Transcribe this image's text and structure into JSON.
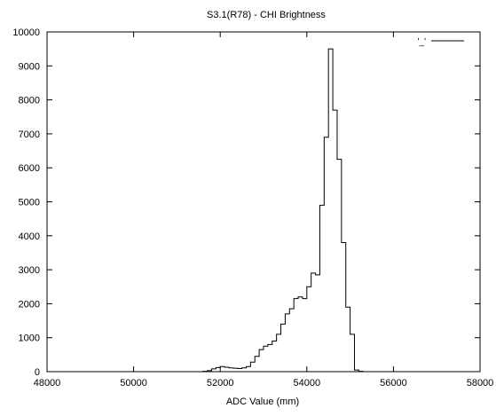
{
  "chart_data": {
    "type": "line",
    "title": "S3.1(R78) - CHI Brightness",
    "xlabel": "ADC Value (mm)",
    "ylabel": "",
    "xlim": [
      48000,
      58000
    ],
    "ylim": [
      0,
      10000
    ],
    "xticks": [
      48000,
      50000,
      52000,
      54000,
      56000,
      58000
    ],
    "yticks": [
      0,
      1000,
      2000,
      3000,
      4000,
      5000,
      6000,
      7000,
      8000,
      9000,
      10000
    ],
    "grid": false,
    "legend_position": "top-right",
    "legend": [
      "'_'"
    ],
    "series": [
      {
        "name": "'_'",
        "style": "steps",
        "x": [
          48000,
          51600,
          51700,
          51800,
          51900,
          52000,
          52100,
          52200,
          52300,
          52400,
          52500,
          52600,
          52700,
          52800,
          52900,
          53000,
          53100,
          53200,
          53300,
          53400,
          53500,
          53600,
          53700,
          53800,
          53900,
          54000,
          54100,
          54200,
          54300,
          54400,
          54500,
          54600,
          54700,
          54800,
          54900,
          55000,
          55100,
          55200,
          55300,
          58000
        ],
        "values": [
          0,
          10,
          30,
          80,
          120,
          150,
          130,
          110,
          100,
          90,
          110,
          150,
          280,
          450,
          650,
          750,
          800,
          900,
          1100,
          1400,
          1700,
          1850,
          2150,
          2200,
          2150,
          2500,
          2900,
          2850,
          4900,
          6900,
          9500,
          7700,
          6250,
          3800,
          1900,
          1100,
          50,
          10,
          0,
          0
        ]
      }
    ],
    "colors": {
      "line": "#000000",
      "axis": "#000000",
      "background": "#ffffff"
    }
  }
}
